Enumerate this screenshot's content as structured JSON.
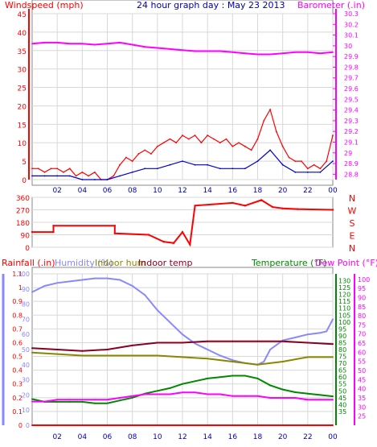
{
  "chart_data": [
    {
      "id": "wind_baro",
      "type": "line",
      "title": "24 hour graph day : May 23 2013",
      "left_label": "Windspeed (mph)",
      "right_label": "Barometer (.in)",
      "left_ylim": [
        0,
        45
      ],
      "left_ticks": [
        "0",
        "5",
        "10",
        "15",
        "20",
        "25",
        "30",
        "35",
        "40",
        "45"
      ],
      "right_ylim": [
        28.75,
        30.3
      ],
      "right_ticks": [
        "28.8",
        "28.9",
        "29",
        "29.1",
        "29.2",
        "29.3",
        "29.4",
        "29.5",
        "29.6",
        "29.7",
        "29.8",
        "29.9",
        "30",
        "30.1",
        "30.2",
        "30.3"
      ],
      "x_ticks": [
        "02",
        "04",
        "06",
        "08",
        "10",
        "12",
        "14",
        "16",
        "18",
        "20",
        "22",
        "00"
      ],
      "series": [
        {
          "axis": "right",
          "color": "#ff00ff",
          "x": [
            0,
            1,
            2,
            3,
            4,
            5,
            6,
            7,
            8,
            9,
            10,
            11,
            12,
            13,
            14,
            15,
            16,
            17,
            18,
            19,
            20,
            21,
            22,
            23,
            24
          ],
          "values": [
            30.02,
            30.03,
            30.03,
            30.02,
            30.02,
            30.01,
            30.02,
            30.03,
            30.01,
            29.99,
            29.98,
            29.97,
            29.96,
            29.95,
            29.95,
            29.95,
            29.94,
            29.93,
            29.92,
            29.92,
            29.93,
            29.94,
            29.94,
            29.93,
            29.94
          ]
        },
        {
          "axis": "left",
          "color": "#ff0000",
          "x": [
            0,
            0.5,
            1,
            1.5,
            2,
            2.5,
            3,
            3.5,
            4,
            4.5,
            5,
            5.5,
            6,
            6.5,
            7,
            7.5,
            8,
            8.5,
            9,
            9.5,
            10,
            10.5,
            11,
            11.5,
            12,
            12.5,
            13,
            13.5,
            14,
            14.5,
            15,
            15.5,
            16,
            16.5,
            17,
            17.5,
            18,
            18.5,
            19,
            19.5,
            20,
            20.5,
            21,
            21.5,
            22,
            22.5,
            23,
            23.5,
            24
          ],
          "values": [
            3,
            3,
            2,
            3,
            3,
            2,
            3,
            1,
            2,
            1,
            2,
            0,
            0,
            1,
            4,
            6,
            5,
            7,
            8,
            7,
            9,
            10,
            11,
            10,
            12,
            11,
            12,
            10,
            12,
            11,
            10,
            11,
            9,
            10,
            9,
            8,
            11,
            16,
            19,
            13,
            9,
            6,
            5,
            5,
            3,
            4,
            3,
            5,
            12
          ]
        },
        {
          "axis": "left",
          "color": "#0000cc",
          "x": [
            0,
            1,
            2,
            3,
            4,
            5,
            6,
            7,
            8,
            9,
            10,
            11,
            12,
            13,
            14,
            15,
            16,
            17,
            18,
            19,
            20,
            21,
            22,
            23,
            24
          ],
          "values": [
            1,
            1,
            1,
            1,
            0,
            0,
            0,
            1,
            2,
            3,
            3,
            4,
            5,
            4,
            4,
            3,
            3,
            3,
            5,
            8,
            4,
            2,
            2,
            2,
            5
          ]
        }
      ]
    },
    {
      "id": "wind_dir",
      "type": "line",
      "left_ylim": [
        0,
        360
      ],
      "left_ticks": [
        "0",
        "90",
        "180",
        "270",
        "360"
      ],
      "right_labels": [
        "N",
        "W",
        "S",
        "E",
        "N"
      ],
      "series": [
        {
          "color": "#ff0000",
          "x": [
            0,
            1.7,
            1.7,
            6.6,
            6.6,
            9.3,
            10.5,
            11.3,
            12,
            12.6,
            13,
            16,
            17,
            18.3,
            19.2,
            20,
            21.2,
            24
          ],
          "values": [
            110,
            110,
            155,
            155,
            100,
            90,
            40,
            30,
            110,
            20,
            300,
            320,
            300,
            340,
            290,
            280,
            275,
            270
          ]
        }
      ]
    },
    {
      "id": "temp_hum",
      "type": "line",
      "labels": [
        "Rainfall (.in)",
        "Humidity (%)",
        "Indoor hum",
        "Indoor temp",
        "Temperature (°F)",
        "Dew Point (°F)"
      ],
      "rain_ticks": [
        "0",
        "0.1",
        "0.2",
        "0.3",
        "0.4",
        "0.5",
        "0.6",
        "0.7",
        "0.8",
        "0.9",
        "1",
        "1.1"
      ],
      "rain_ylim": [
        0,
        1.1
      ],
      "hum_ticks": [
        "0",
        "10",
        "20",
        "30",
        "40",
        "50",
        "60",
        "70",
        "80",
        "90",
        "100"
      ],
      "hum_ylim": [
        0,
        100
      ],
      "temp_ticks": [
        "35",
        "40",
        "45",
        "50",
        "55",
        "60",
        "65",
        "70",
        "75",
        "80",
        "85",
        "90",
        "95",
        "100",
        "105",
        "110",
        "115",
        "120",
        "125",
        "130"
      ],
      "temp_ylim": [
        25,
        135
      ],
      "dew_ticks": [
        "25",
        "30",
        "35",
        "40",
        "45",
        "50",
        "55",
        "60",
        "65",
        "70",
        "75",
        "80",
        "85",
        "90",
        "95",
        "100"
      ],
      "dew_ylim": [
        20,
        103
      ],
      "series": [
        {
          "name": "Humidity (%)",
          "color": "#8888ff",
          "axis": "hum",
          "x": [
            0,
            1,
            2,
            3,
            4,
            5,
            6,
            7,
            8,
            9,
            10,
            11,
            12,
            13,
            14,
            15,
            16,
            17,
            18,
            18.5,
            19,
            20,
            21,
            22,
            23,
            23.5,
            24
          ],
          "values": [
            88,
            92,
            94,
            95,
            96,
            97,
            97,
            96,
            92,
            86,
            76,
            68,
            60,
            54,
            50,
            46,
            43,
            41,
            40,
            42,
            50,
            56,
            58,
            60,
            61,
            62,
            70
          ]
        },
        {
          "name": "Indoor temp",
          "color": "#880022",
          "axis": "temp",
          "x": [
            0,
            2,
            4,
            6,
            8,
            10,
            12,
            14,
            16,
            18,
            20,
            22,
            24
          ],
          "values": [
            81,
            80,
            79,
            80,
            83,
            85,
            85,
            86,
            86,
            86,
            86,
            85,
            84
          ]
        },
        {
          "name": "Indoor hum",
          "color": "#888800",
          "axis": "hum",
          "x": [
            0,
            2,
            4,
            6,
            8,
            10,
            12,
            14,
            16,
            18,
            20,
            22,
            24
          ],
          "values": [
            48,
            47,
            46,
            46,
            46,
            46,
            45,
            44,
            42,
            40,
            42,
            45,
            45
          ]
        },
        {
          "name": "Temperature (°F)",
          "color": "#008800",
          "axis": "temp",
          "x": [
            0,
            1,
            2,
            3,
            4,
            5,
            6,
            7,
            8,
            9,
            10,
            11,
            12,
            13,
            14,
            15,
            16,
            17,
            18,
            19,
            20,
            21,
            22,
            23,
            24
          ],
          "values": [
            44,
            42,
            42,
            42,
            42,
            41,
            41,
            43,
            45,
            48,
            50,
            52,
            55,
            57,
            59,
            60,
            61,
            61,
            59,
            54,
            51,
            49,
            48,
            47,
            46
          ]
        },
        {
          "name": "Dew Point (°F)",
          "color": "#ff00ff",
          "axis": "dew",
          "x": [
            0,
            1,
            2,
            3,
            4,
            5,
            6,
            7,
            8,
            9,
            10,
            11,
            12,
            13,
            14,
            15,
            16,
            17,
            18,
            19,
            20,
            21,
            22,
            23,
            24
          ],
          "values": [
            33,
            33,
            34,
            34,
            34,
            34,
            34,
            35,
            36,
            37,
            37,
            37,
            38,
            38,
            37,
            37,
            36,
            36,
            36,
            35,
            35,
            35,
            34,
            34,
            34
          ]
        },
        {
          "name": "Rainfall (.in)",
          "color": "#ff0000",
          "axis": "rain",
          "x": [
            0,
            24
          ],
          "values": [
            0,
            0
          ]
        }
      ],
      "x_ticks": [
        "02",
        "04",
        "06",
        "08",
        "10",
        "12",
        "14",
        "16",
        "18",
        "20",
        "22",
        "00"
      ]
    }
  ],
  "colors": {
    "wind": "#ff0000",
    "gust_avg": "#0000cc",
    "barometer": "#ff00ff",
    "title": "#0000aa",
    "humidity": "#8888ff",
    "indoor_hum": "#888800",
    "indoor_temp": "#880022",
    "temperature": "#008800",
    "dewpoint": "#ff00ff",
    "rain": "#ff0000"
  }
}
